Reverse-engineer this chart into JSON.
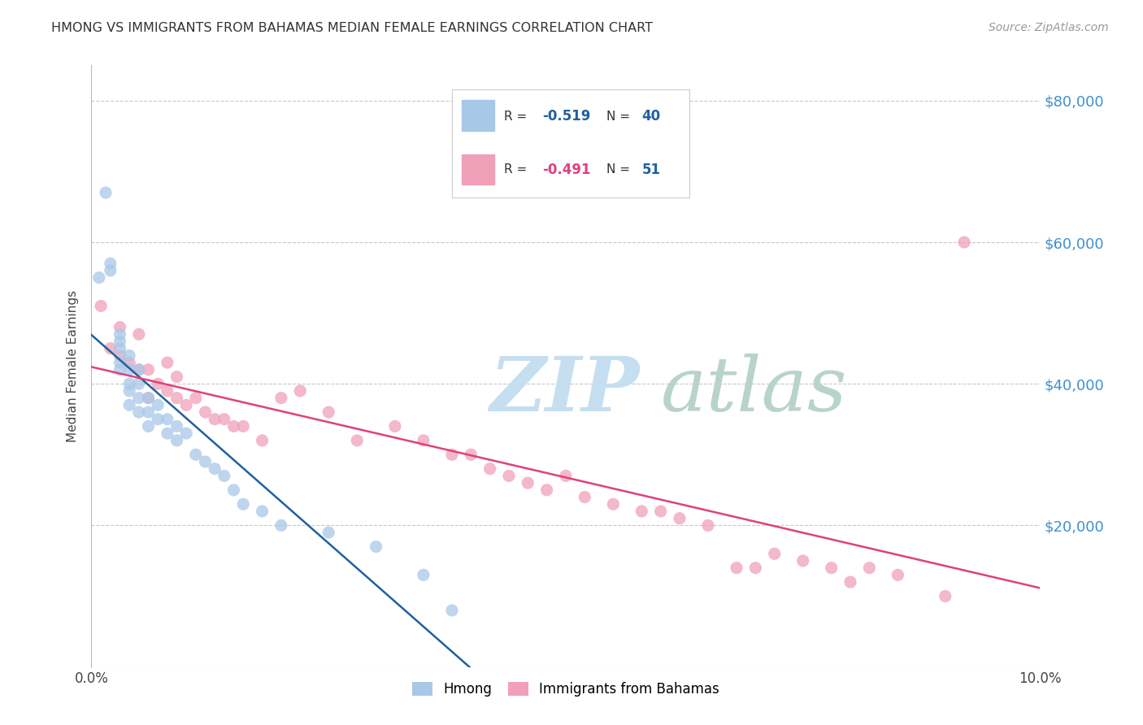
{
  "title": "HMONG VS IMMIGRANTS FROM BAHAMAS MEDIAN FEMALE EARNINGS CORRELATION CHART",
  "source": "Source: ZipAtlas.com",
  "ylabel": "Median Female Earnings",
  "xlim": [
    0.0,
    0.1
  ],
  "ylim": [
    0,
    85000
  ],
  "yticks": [
    0,
    20000,
    40000,
    60000,
    80000
  ],
  "ytick_labels": [
    "",
    "$20,000",
    "$40,000",
    "$60,000",
    "$80,000"
  ],
  "xticks": [
    0.0,
    0.02,
    0.04,
    0.06,
    0.08,
    0.1
  ],
  "xtick_labels": [
    "0.0%",
    "",
    "",
    "",
    "",
    "10.0%"
  ],
  "background_color": "#ffffff",
  "grid_color": "#c8c8c8",
  "blue_color": "#a8c8e8",
  "pink_color": "#f0a0b8",
  "blue_line_color": "#2060a0",
  "pink_line_color": "#e04080",
  "right_axis_color": "#4090d0",
  "hmong_x": [
    0.0008,
    0.0015,
    0.002,
    0.002,
    0.003,
    0.003,
    0.003,
    0.003,
    0.003,
    0.004,
    0.004,
    0.004,
    0.004,
    0.004,
    0.005,
    0.005,
    0.005,
    0.005,
    0.006,
    0.006,
    0.006,
    0.007,
    0.007,
    0.008,
    0.008,
    0.009,
    0.009,
    0.01,
    0.011,
    0.012,
    0.013,
    0.014,
    0.015,
    0.016,
    0.018,
    0.02,
    0.025,
    0.03,
    0.035,
    0.038
  ],
  "hmong_y": [
    55000,
    67000,
    57000,
    56000,
    47000,
    46000,
    45000,
    43000,
    42000,
    44000,
    42000,
    40000,
    39000,
    37000,
    42000,
    40000,
    38000,
    36000,
    38000,
    36000,
    34000,
    37000,
    35000,
    35000,
    33000,
    34000,
    32000,
    33000,
    30000,
    29000,
    28000,
    27000,
    25000,
    23000,
    22000,
    20000,
    19000,
    17000,
    13000,
    8000
  ],
  "bahamas_x": [
    0.001,
    0.002,
    0.003,
    0.003,
    0.004,
    0.005,
    0.005,
    0.006,
    0.006,
    0.007,
    0.008,
    0.008,
    0.009,
    0.009,
    0.01,
    0.011,
    0.012,
    0.013,
    0.014,
    0.015,
    0.016,
    0.018,
    0.02,
    0.022,
    0.025,
    0.028,
    0.032,
    0.035,
    0.038,
    0.04,
    0.042,
    0.044,
    0.046,
    0.048,
    0.05,
    0.052,
    0.055,
    0.058,
    0.06,
    0.062,
    0.065,
    0.068,
    0.07,
    0.072,
    0.075,
    0.078,
    0.08,
    0.082,
    0.085,
    0.09,
    0.092
  ],
  "bahamas_y": [
    51000,
    45000,
    48000,
    44000,
    43000,
    47000,
    42000,
    42000,
    38000,
    40000,
    43000,
    39000,
    41000,
    38000,
    37000,
    38000,
    36000,
    35000,
    35000,
    34000,
    34000,
    32000,
    38000,
    39000,
    36000,
    32000,
    34000,
    32000,
    30000,
    30000,
    28000,
    27000,
    26000,
    25000,
    27000,
    24000,
    23000,
    22000,
    22000,
    21000,
    20000,
    14000,
    14000,
    16000,
    15000,
    14000,
    12000,
    14000,
    13000,
    10000,
    60000
  ],
  "legend_r1": "-0.519",
  "legend_n1": "40",
  "legend_r2": "-0.491",
  "legend_n2": "51"
}
